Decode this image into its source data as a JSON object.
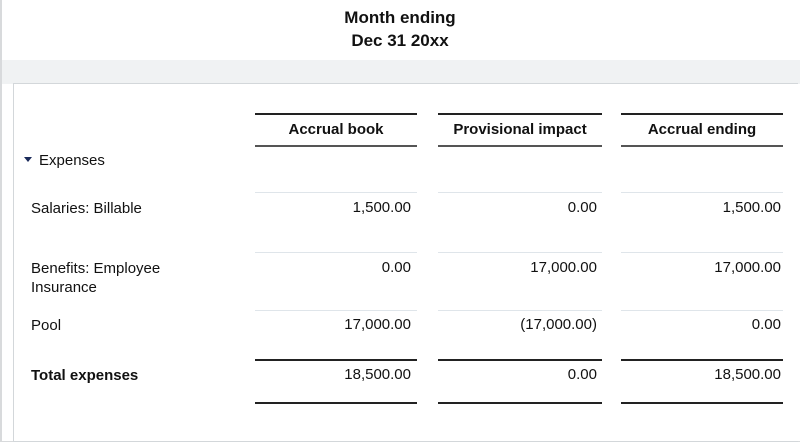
{
  "header": {
    "line1": "Month ending",
    "line2": "Dec 31 20xx"
  },
  "columns": [
    "Accrual book",
    "Provisional impact",
    "Accrual ending"
  ],
  "section": {
    "label": "Expenses"
  },
  "rows": [
    {
      "label": "Salaries: Billable",
      "values": [
        "1,500.00",
        "0.00",
        "1,500.00"
      ]
    },
    {
      "label": "Benefits: Employee Insurance",
      "values": [
        "0.00",
        "17,000.00",
        "17,000.00"
      ]
    },
    {
      "label": "Pool",
      "values": [
        "17,000.00",
        "(17,000.00)",
        "0.00"
      ]
    }
  ],
  "total": {
    "label": "Total expenses",
    "values": [
      "18,500.00",
      "0.00",
      "18,500.00"
    ]
  }
}
